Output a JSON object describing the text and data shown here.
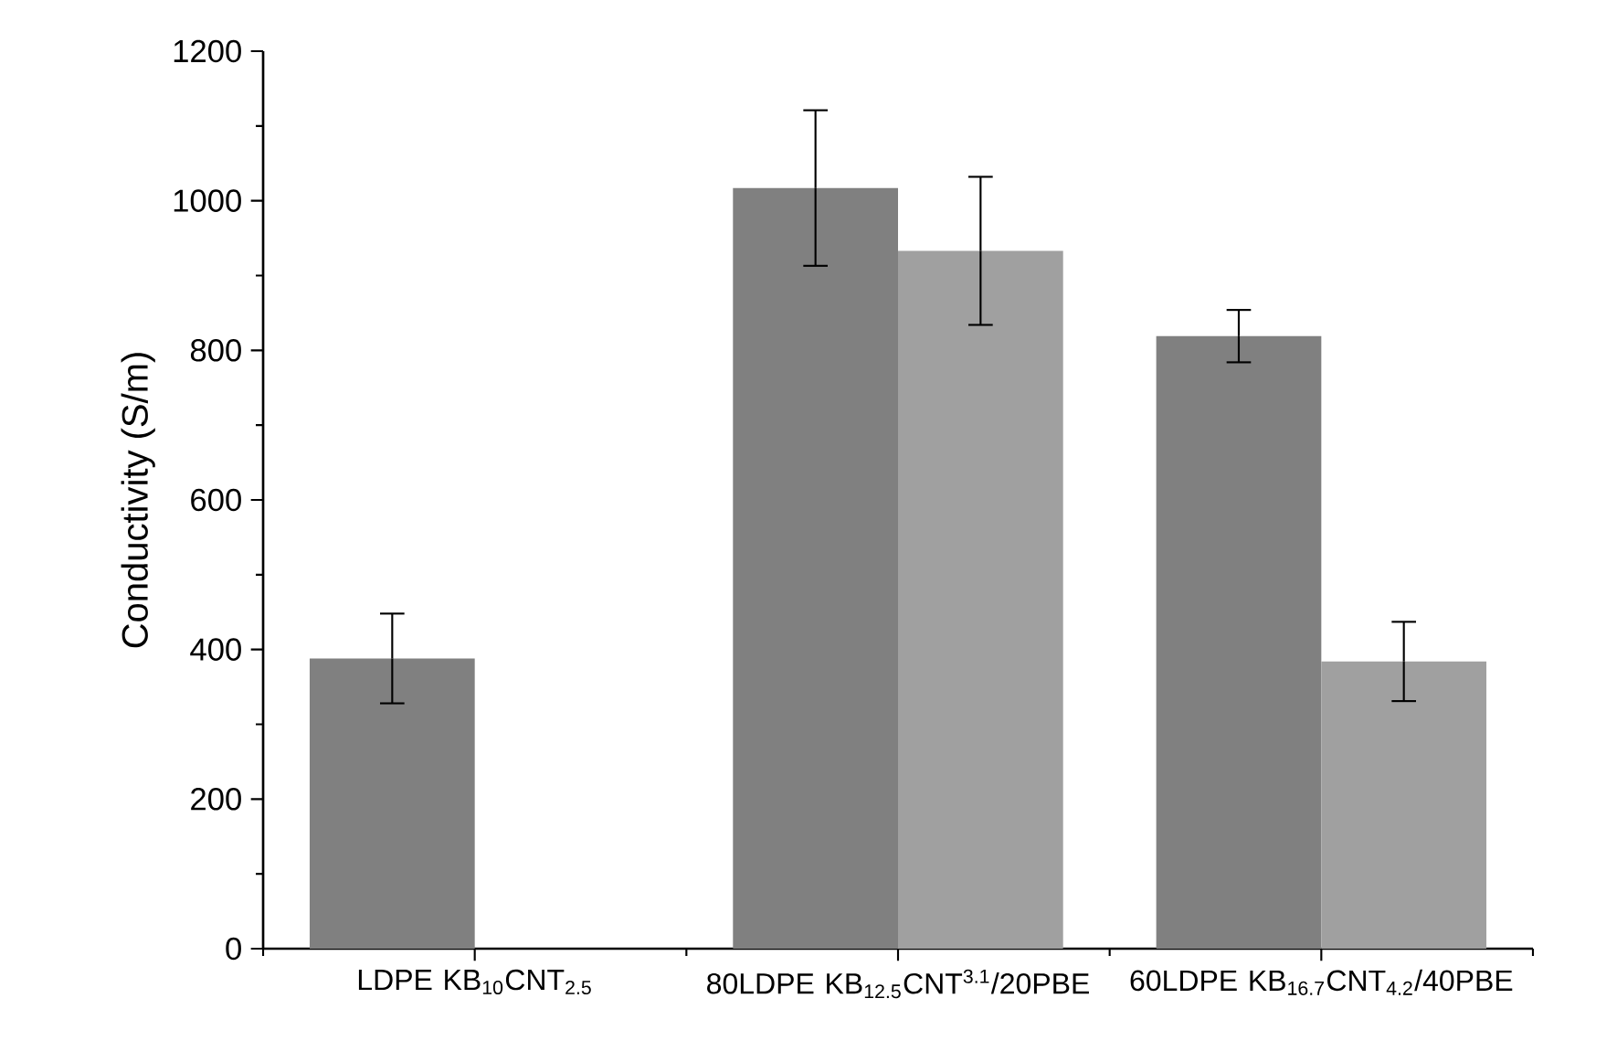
{
  "chart_data": {
    "type": "bar",
    "ylabel": "Conductivity (S/m)",
    "categories": [
      "LDPE KB$_{10}$CNT$_{2.5}$",
      "80LDPE KB$_{12.5}$CNT$^{3.1}$/20PBE",
      "60LDPE KB$_{16.7}$CNT$_{4.2}$/40PBE"
    ],
    "series": [
      {
        "color": "#808080",
        "values": [
          388,
          1017,
          819
        ],
        "errors": [
          60,
          104,
          35
        ]
      },
      {
        "color": "#a0a0a0",
        "values": [
          null,
          933,
          384
        ],
        "errors": [
          null,
          99,
          53
        ]
      }
    ],
    "ylim": [
      0,
      1200
    ],
    "yticks": [
      0,
      200,
      400,
      600,
      800,
      1000,
      1200
    ]
  }
}
